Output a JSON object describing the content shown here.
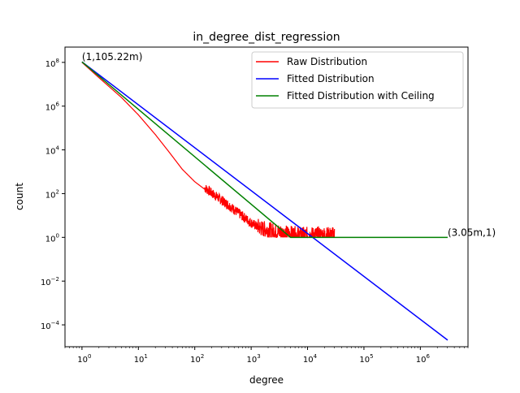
{
  "chart_data": {
    "type": "line",
    "title": "in_degree_dist_regression",
    "xlabel": "degree",
    "ylabel": "count",
    "x_scale": "log",
    "y_scale": "log",
    "xlim": [
      0.5,
      7000000
    ],
    "ylim": [
      1e-05,
      500000000
    ],
    "x_ticks": [
      {
        "value": 1,
        "base": "10",
        "exp": "0"
      },
      {
        "value": 10,
        "base": "10",
        "exp": "1"
      },
      {
        "value": 100,
        "base": "10",
        "exp": "2"
      },
      {
        "value": 1000,
        "base": "10",
        "exp": "3"
      },
      {
        "value": 10000,
        "base": "10",
        "exp": "4"
      },
      {
        "value": 100000,
        "base": "10",
        "exp": "5"
      },
      {
        "value": 1000000,
        "base": "10",
        "exp": "6"
      }
    ],
    "y_ticks": [
      {
        "value": 0.0001,
        "base": "10",
        "exp": "−4"
      },
      {
        "value": 0.01,
        "base": "10",
        "exp": "−2"
      },
      {
        "value": 1,
        "base": "10",
        "exp": "0"
      },
      {
        "value": 100,
        "base": "10",
        "exp": "2"
      },
      {
        "value": 10000,
        "base": "10",
        "exp": "4"
      },
      {
        "value": 1000000,
        "base": "10",
        "exp": "6"
      },
      {
        "value": 100000000,
        "base": "10",
        "exp": "8"
      }
    ],
    "grid": false,
    "legend_position": "top-right",
    "series": [
      {
        "name": "Raw Distribution",
        "color": "#ff0000",
        "noisy_tail": true,
        "x": [
          1,
          2,
          5,
          10,
          20,
          35,
          60,
          100,
          200,
          400,
          700,
          1000,
          1500,
          2500,
          4000,
          8000,
          15000,
          30000
        ],
        "y": [
          100000000,
          20000000,
          2500000,
          400000,
          50000,
          8000,
          1300,
          350,
          90,
          25,
          8,
          4,
          2,
          1.5,
          1.2,
          1,
          1,
          1
        ]
      },
      {
        "name": "Fitted Distribution",
        "color": "#0000ff",
        "x": [
          1,
          3050000
        ],
        "y": [
          105220000,
          2e-05
        ]
      },
      {
        "name": "Fitted Distribution with Ceiling",
        "color": "#008000",
        "x": [
          1,
          5000,
          3050000
        ],
        "y": [
          105220000,
          1,
          1
        ]
      }
    ],
    "annotations": [
      {
        "text": "(1,105.22m)",
        "x": 1,
        "y": 105220000
      },
      {
        "text": "(3.05m,1)",
        "x": 3050000,
        "y": 1
      }
    ]
  }
}
